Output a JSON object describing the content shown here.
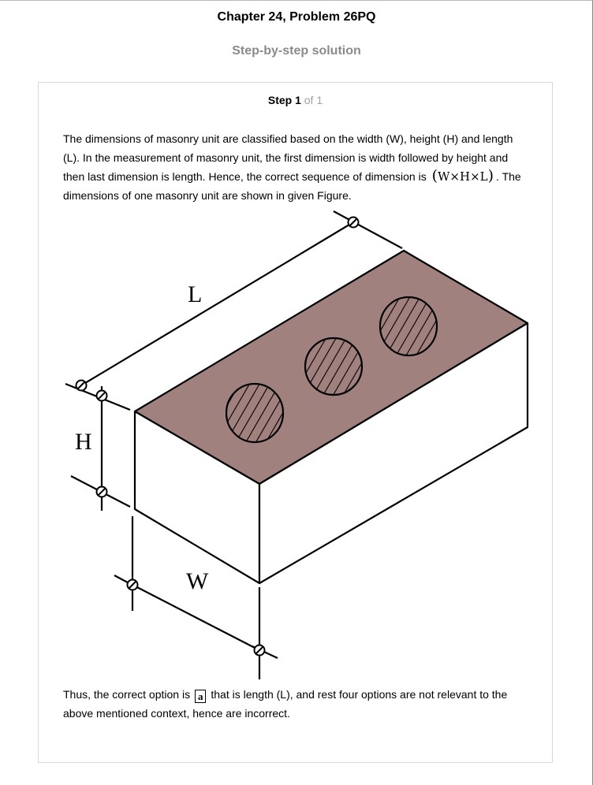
{
  "header": {
    "chapter_title": "Chapter 24, Problem 26PQ",
    "subtitle": "Step-by-step solution"
  },
  "step": {
    "label": "Step 1",
    "total": "of 1"
  },
  "paragraph_1": {
    "text_before": "The dimensions of masonry unit are classified based on the width (W), height (H) and length (L). In the measurement of masonry unit, the first dimension is width followed by height and then last dimension is length. Hence, the correct sequence of dimension is",
    "formula_open": "(",
    "formula": "W×H×L",
    "formula_close": ")",
    "text_after": ". The dimensions of one masonry unit are shown in given Figure."
  },
  "figure": {
    "labels": {
      "length": "L",
      "height": "H",
      "width": "W"
    },
    "colors": {
      "top_face": "#a1817e",
      "line": "#000000"
    }
  },
  "paragraph_2": {
    "text_before": "Thus, the correct option is",
    "answer": "a",
    "text_after": "that is length (L), and rest four options are not relevant to the above mentioned context, hence are incorrect."
  }
}
